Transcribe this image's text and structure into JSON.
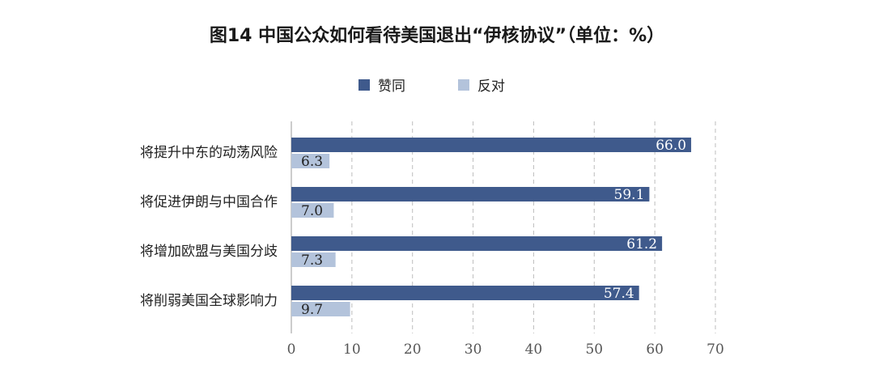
{
  "chart_data": {
    "type": "bar",
    "orientation": "horizontal",
    "title": "图14  中国公众如何看待美国退出“伊核协议”（单位：%）",
    "categories": [
      "将提升中东的动荡风险",
      "将促进伊朗与中国合作",
      "将增加欧盟与美国分歧",
      "将削弱美国全球影响力"
    ],
    "series": [
      {
        "name": "赞同",
        "color": "#3f5a8c",
        "values": [
          66.0,
          59.1,
          61.2,
          57.4
        ]
      },
      {
        "name": "反对",
        "color": "#b3c3db",
        "values": [
          6.3,
          7.0,
          7.3,
          9.7
        ]
      }
    ],
    "xlim": [
      0,
      70
    ],
    "xticks": [
      "0",
      "10",
      "20",
      "30",
      "40",
      "50",
      "60",
      "70"
    ],
    "grid": "vertical dashed",
    "legend_position": "top"
  }
}
